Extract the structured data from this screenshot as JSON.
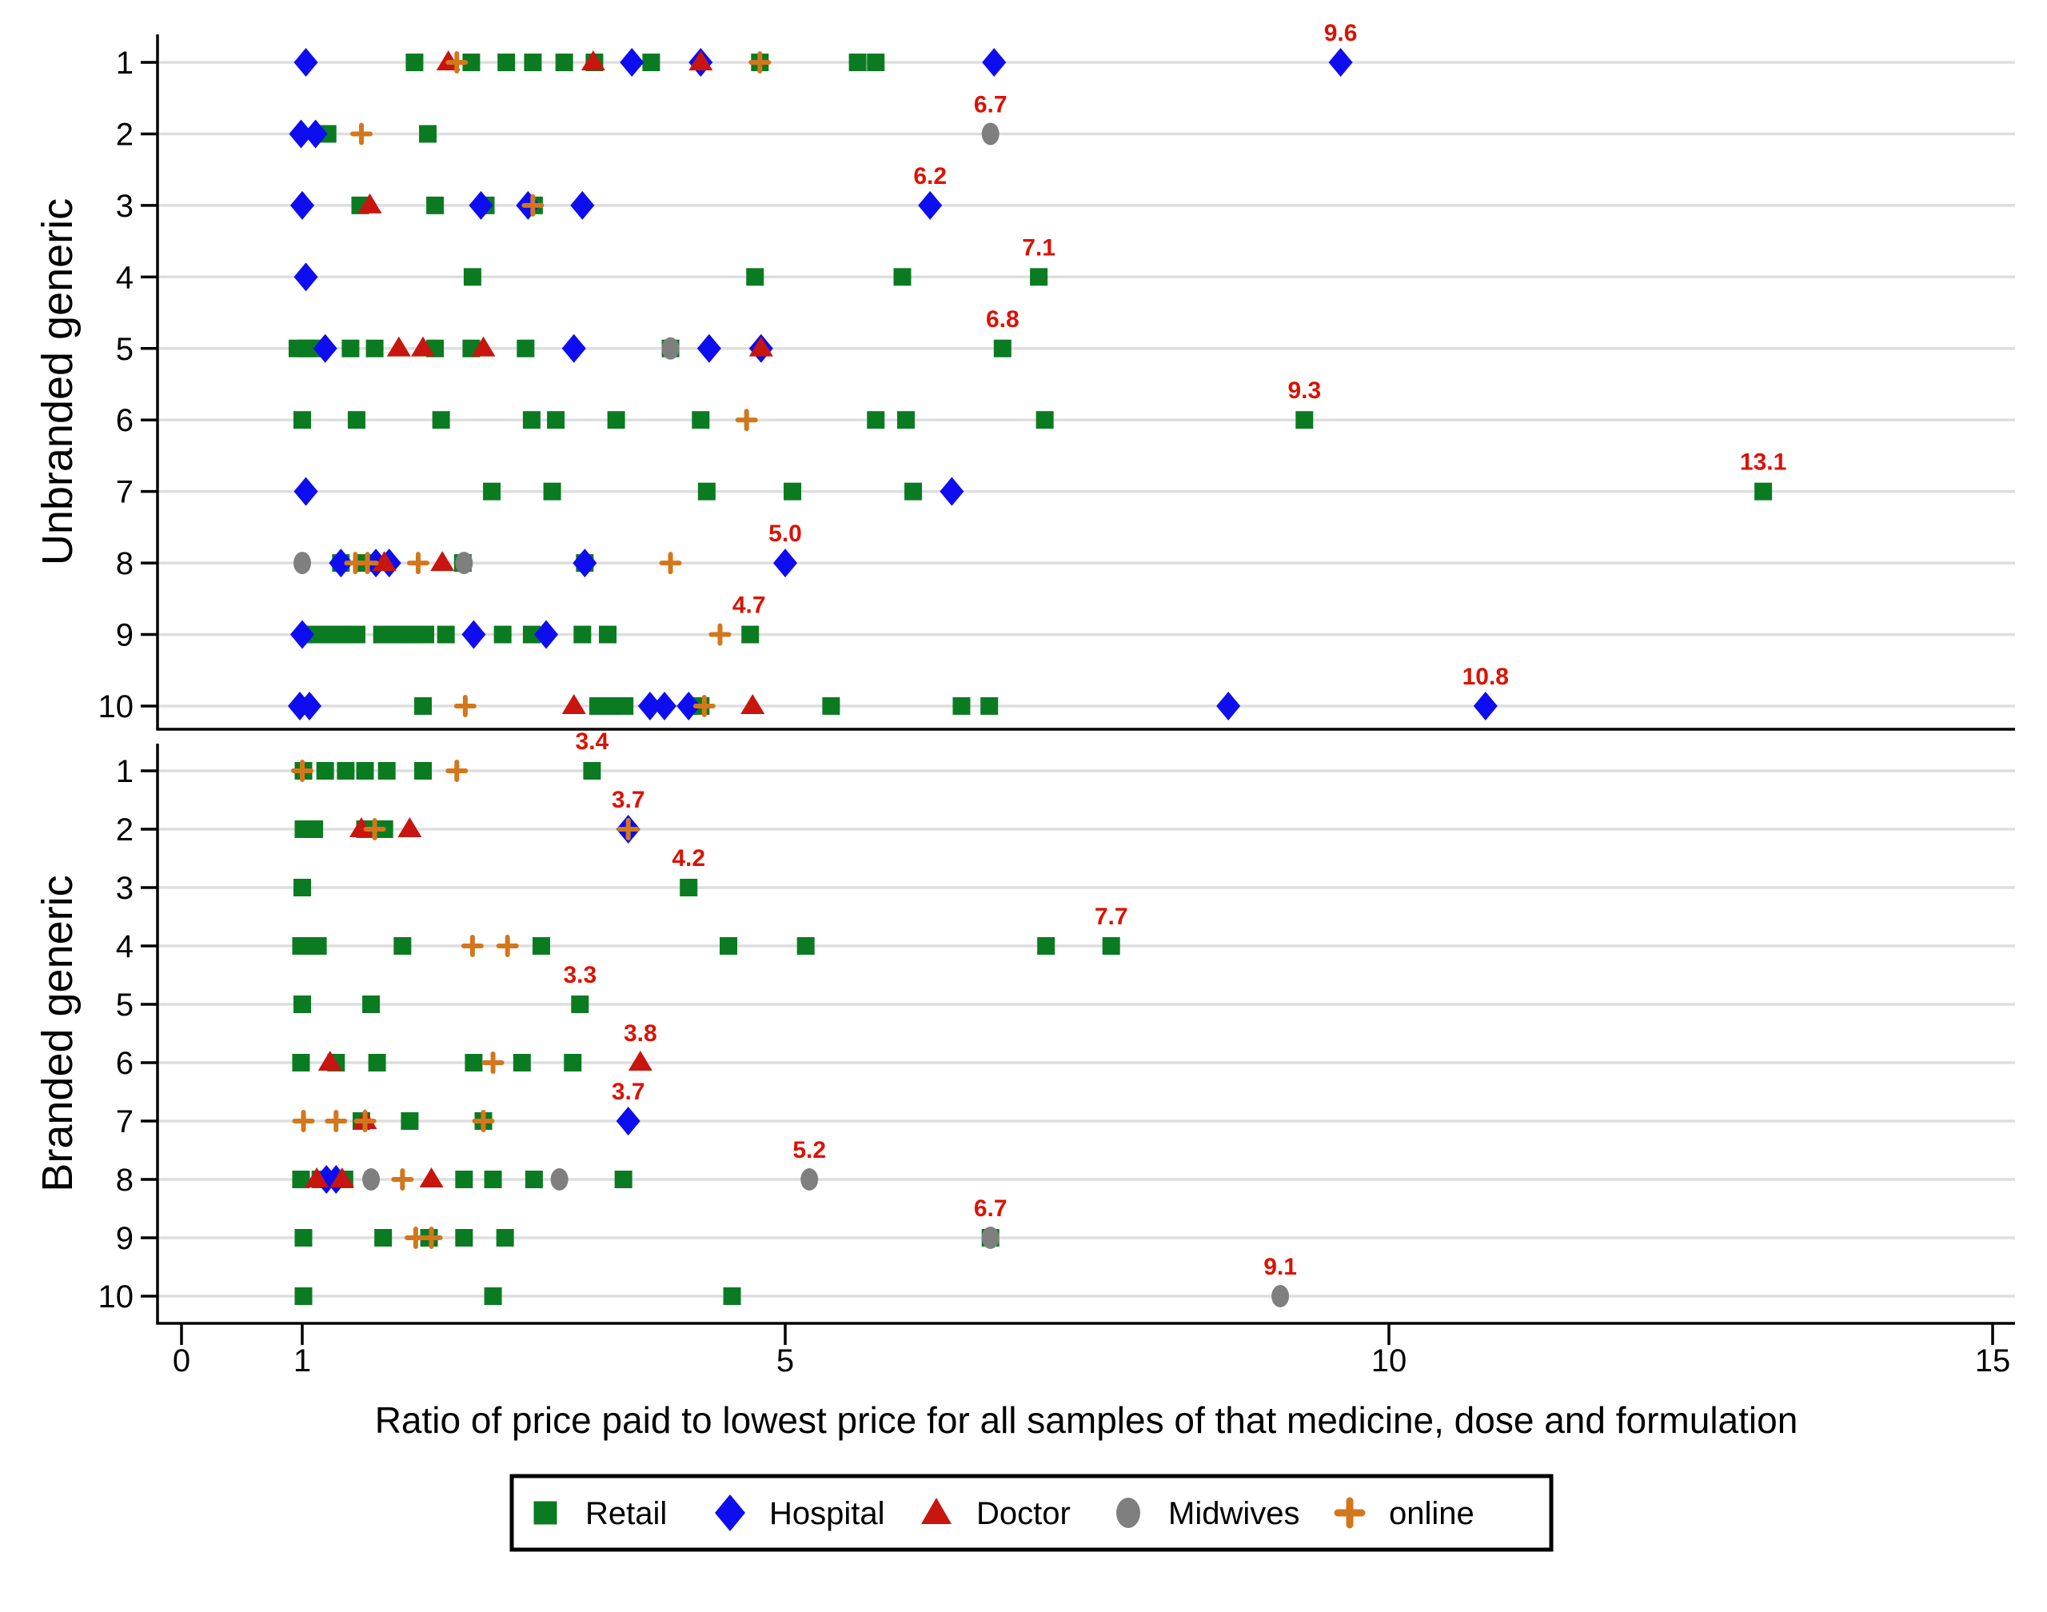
{
  "chart_data": {
    "type": "scatter",
    "xlabel": "Ratio of price paid to lowest price for all samples of that medicine, dose and formulation",
    "x_ticks": [
      0,
      1,
      5,
      10,
      15
    ],
    "xlim": [
      0,
      15
    ],
    "grid": true,
    "legend_position": "bottom",
    "colors": {
      "retail": "#0b7b22",
      "hospital": "#0d0df0",
      "doctor": "#c8150f",
      "midwives": "#7f7f7f",
      "online": "#d2771c",
      "max_label": "#dd1100",
      "gridline": "#dedede"
    },
    "legend": [
      {
        "label": "Retail",
        "series": "retail",
        "marker": "square"
      },
      {
        "label": "Hospital",
        "series": "hospital",
        "marker": "diamond"
      },
      {
        "label": "Doctor",
        "series": "doctor",
        "marker": "triangle"
      },
      {
        "label": "Midwives",
        "series": "midwives",
        "marker": "circle"
      },
      {
        "label": "online",
        "series": "online",
        "marker": "plus"
      }
    ],
    "panels": [
      {
        "ylabel": "Unbranded generic",
        "rows": [
          {
            "label": "1",
            "max_label": "9.6",
            "max_x": 9.6,
            "retail": [
              1.93,
              2.4,
              2.69,
              2.91,
              3.17,
              3.42,
              3.89,
              4.79,
              5.6,
              5.75
            ],
            "hospital": [
              1.03,
              3.73,
              4.3,
              6.73,
              9.6
            ],
            "doctor": [
              2.21,
              3.41,
              4.3
            ],
            "midwives": [],
            "online": [
              2.28,
              4.79
            ]
          },
          {
            "label": "2",
            "max_label": "6.7",
            "max_x": 6.7,
            "retail": [
              1.21,
              2.04
            ],
            "hospital": [
              0.99,
              1.11
            ],
            "doctor": [],
            "midwives": [
              6.7
            ],
            "online": [
              1.49
            ]
          },
          {
            "label": "3",
            "max_label": "6.2",
            "max_x": 6.2,
            "retail": [
              1.48,
              2.1,
              2.52,
              2.92
            ],
            "hospital": [
              1.0,
              2.48,
              2.87,
              3.32,
              6.2
            ],
            "doctor": [
              1.56
            ],
            "midwives": [],
            "online": [
              2.91
            ]
          },
          {
            "label": "4",
            "max_label": "7.1",
            "max_x": 7.1,
            "retail": [
              2.41,
              4.75,
              5.97,
              7.1
            ],
            "hospital": [
              1.03
            ],
            "doctor": [],
            "midwives": [],
            "online": []
          },
          {
            "label": "5",
            "max_label": "6.8",
            "max_x": 6.8,
            "retail": [
              0.96,
              1.03,
              1.1,
              1.4,
              1.6,
              2.1,
              2.4,
              2.85,
              4.05,
              6.8
            ],
            "hospital": [
              1.19,
              3.25,
              4.37,
              4.8
            ],
            "doctor": [
              1.8,
              2.0,
              2.5,
              4.8
            ],
            "midwives": [
              4.05
            ],
            "online": []
          },
          {
            "label": "6",
            "max_label": "9.3",
            "max_x": 9.3,
            "retail": [
              1.0,
              1.45,
              2.15,
              2.9,
              3.1,
              3.6,
              4.3,
              5.75,
              6.0,
              7.15,
              9.3
            ],
            "hospital": [],
            "doctor": [],
            "midwives": [],
            "online": [
              4.68
            ]
          },
          {
            "label": "7",
            "max_label": "13.1",
            "max_x": 13.1,
            "retail": [
              2.57,
              3.07,
              4.35,
              5.06,
              6.06,
              13.1
            ],
            "hospital": [
              1.03,
              6.38
            ],
            "doctor": [],
            "midwives": [],
            "online": []
          },
          {
            "label": "8",
            "max_label": "5.0",
            "max_x": 5.0,
            "retail": [
              1.32,
              1.51,
              2.33,
              3.34
            ],
            "hospital": [
              1.32,
              1.61,
              1.72,
              3.34,
              5.0
            ],
            "doctor": [
              1.68,
              2.16
            ],
            "midwives": [
              1.0,
              2.34
            ],
            "online": [
              1.44,
              1.54,
              1.96,
              4.05
            ]
          },
          {
            "label": "9",
            "max_label": "4.7",
            "max_x": 4.7,
            "retail": [
              1.08,
              1.15,
              1.22,
              1.29,
              1.36,
              1.45,
              1.66,
              1.73,
              1.8,
              1.87,
              1.94,
              2.02,
              2.19,
              2.66,
              2.9,
              3.32,
              3.53,
              4.71
            ],
            "hospital": [
              1.0,
              2.42,
              3.02
            ],
            "doctor": [],
            "midwives": [],
            "online": [
              4.46
            ]
          },
          {
            "label": "10",
            "max_label": "10.8",
            "max_x": 10.8,
            "retail": [
              2.0,
              3.45,
              3.55,
              3.67,
              4.3,
              5.38,
              6.46,
              6.69
            ],
            "hospital": [
              0.98,
              1.06,
              3.88,
              4.0,
              4.2,
              8.67,
              10.8
            ],
            "doctor": [
              3.25,
              4.73
            ],
            "midwives": [],
            "online": [
              2.35,
              4.33
            ]
          }
        ]
      },
      {
        "ylabel": "Branded generic",
        "rows": [
          {
            "label": "1",
            "max_label": "3.4",
            "max_x": 3.4,
            "retail": [
              1.01,
              1.19,
              1.36,
              1.52,
              1.7,
              2.0,
              3.4
            ],
            "hospital": [],
            "doctor": [],
            "midwives": [],
            "online": [
              1.0,
              2.28
            ]
          },
          {
            "label": "2",
            "max_label": "3.7",
            "max_x": 3.7,
            "retail": [
              1.01,
              1.1,
              1.52,
              1.68
            ],
            "hospital": [
              3.7
            ],
            "doctor": [
              1.49,
              1.89
            ],
            "midwives": [],
            "online": [
              1.6,
              3.7
            ]
          },
          {
            "label": "3",
            "max_label": "4.2",
            "max_x": 4.2,
            "retail": [
              1.0,
              4.2
            ],
            "hospital": [],
            "doctor": [],
            "midwives": [],
            "online": []
          },
          {
            "label": "4",
            "max_label": "7.7",
            "max_x": 7.7,
            "retail": [
              0.99,
              1.13,
              1.83,
              2.98,
              4.53,
              5.17,
              7.16,
              7.7
            ],
            "hospital": [],
            "doctor": [],
            "midwives": [],
            "online": [
              2.41,
              2.7
            ]
          },
          {
            "label": "5",
            "max_label": "3.3",
            "max_x": 3.3,
            "retail": [
              1.0,
              1.57,
              3.3
            ],
            "hospital": [],
            "doctor": [],
            "midwives": [],
            "online": []
          },
          {
            "label": "6",
            "max_label": "3.8",
            "max_x": 3.8,
            "retail": [
              0.99,
              1.28,
              1.62,
              2.42,
              2.82,
              3.24
            ],
            "hospital": [],
            "doctor": [
              1.23,
              3.8
            ],
            "midwives": [],
            "online": [
              2.58
            ]
          },
          {
            "label": "7",
            "max_label": "3.7",
            "max_x": 3.7,
            "retail": [
              1.49,
              1.89,
              2.5
            ],
            "hospital": [
              3.7
            ],
            "doctor": [
              1.52
            ],
            "midwives": [],
            "online": [
              1.01,
              1.28,
              1.52,
              2.5
            ]
          },
          {
            "label": "8",
            "max_label": "5.2",
            "max_x": 5.2,
            "retail": [
              0.99,
              1.15,
              1.35,
              2.34,
              2.58,
              2.92,
              3.66
            ],
            "hospital": [
              1.2,
              1.28
            ],
            "doctor": [
              1.12,
              1.33,
              2.07
            ],
            "midwives": [
              1.57,
              3.13,
              5.2
            ],
            "online": [
              1.83
            ]
          },
          {
            "label": "9",
            "max_label": "6.7",
            "max_x": 6.7,
            "retail": [
              1.01,
              1.67,
              2.05,
              2.34,
              2.68,
              6.7
            ],
            "hospital": [],
            "doctor": [],
            "midwives": [
              6.7
            ],
            "online": [
              1.94,
              2.07
            ]
          },
          {
            "label": "10",
            "max_label": "9.1",
            "max_x": 9.1,
            "retail": [
              1.01,
              2.58,
              4.56
            ],
            "hospital": [],
            "doctor": [],
            "midwives": [
              9.1
            ],
            "online": []
          }
        ]
      }
    ]
  }
}
